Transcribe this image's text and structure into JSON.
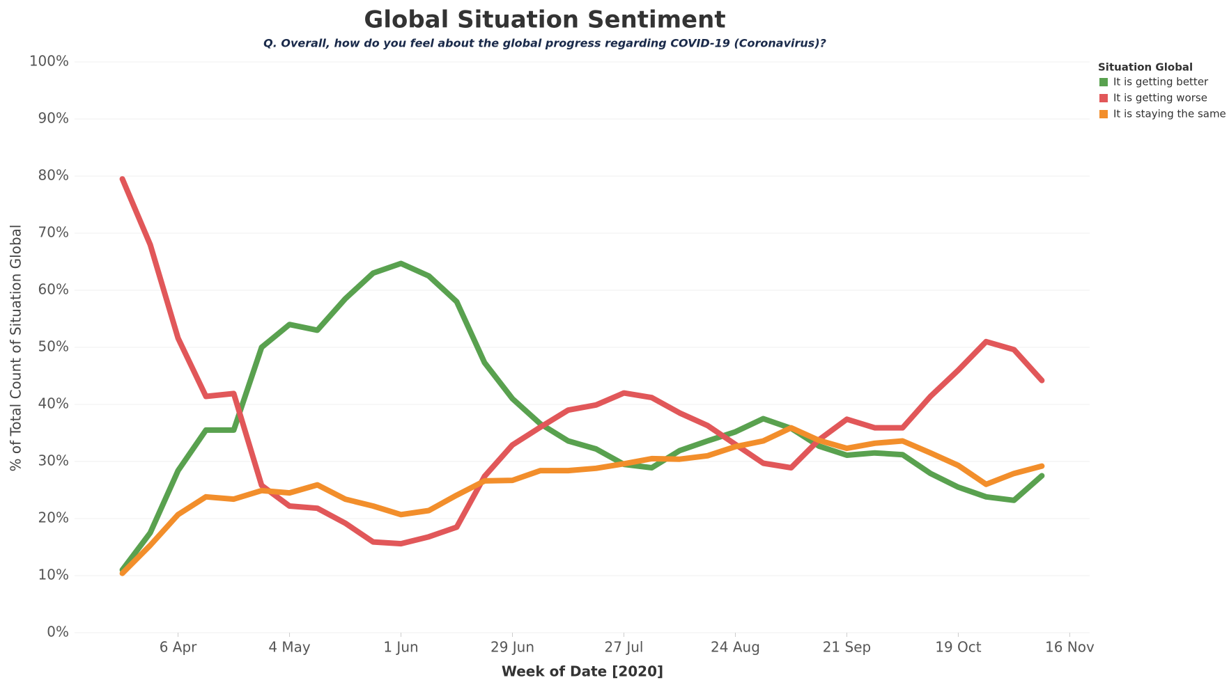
{
  "chart_data": {
    "type": "line",
    "title": "Global Situation Sentiment",
    "subtitle": "Q. Overall, how do you feel about the global progress regarding COVID-19 (Coronavirus)?",
    "x_label": "Week of Date [2020]",
    "y_label": "% of Total Count of Situation Global",
    "legend_title": "Situation Global",
    "legend": "right",
    "grid": true,
    "x": [
      "2020-03-23",
      "2020-03-30",
      "2020-04-06",
      "2020-04-13",
      "2020-04-20",
      "2020-04-27",
      "2020-05-04",
      "2020-05-11",
      "2020-05-18",
      "2020-05-25",
      "2020-06-01",
      "2020-06-08",
      "2020-06-15",
      "2020-06-22",
      "2020-06-29",
      "2020-07-06",
      "2020-07-13",
      "2020-07-20",
      "2020-07-27",
      "2020-08-03",
      "2020-08-10",
      "2020-08-17",
      "2020-08-24",
      "2020-08-31",
      "2020-09-07",
      "2020-09-14",
      "2020-09-21",
      "2020-09-28",
      "2020-10-05",
      "2020-10-12",
      "2020-10-19",
      "2020-10-26",
      "2020-11-02",
      "2020-11-09"
    ],
    "xlim": [
      "2020-03-11",
      "2020-11-21"
    ],
    "xticks": [
      {
        "value": "2020-04-06",
        "label": "6 Apr"
      },
      {
        "value": "2020-05-04",
        "label": "4 May"
      },
      {
        "value": "2020-06-01",
        "label": "1 Jun"
      },
      {
        "value": "2020-06-29",
        "label": "29 Jun"
      },
      {
        "value": "2020-07-27",
        "label": "27 Jul"
      },
      {
        "value": "2020-08-24",
        "label": "24 Aug"
      },
      {
        "value": "2020-09-21",
        "label": "21 Sep"
      },
      {
        "value": "2020-10-19",
        "label": "19 Oct"
      },
      {
        "value": "2020-11-16",
        "label": "16 Nov"
      }
    ],
    "ylim": [
      0,
      100
    ],
    "yticks": [
      {
        "value": 0,
        "label": "0%"
      },
      {
        "value": 10,
        "label": "10%"
      },
      {
        "value": 20,
        "label": "20%"
      },
      {
        "value": 30,
        "label": "30%"
      },
      {
        "value": 40,
        "label": "40%"
      },
      {
        "value": 50,
        "label": "50%"
      },
      {
        "value": 60,
        "label": "60%"
      },
      {
        "value": 70,
        "label": "70%"
      },
      {
        "value": 80,
        "label": "80%"
      },
      {
        "value": 90,
        "label": "90%"
      },
      {
        "value": 100,
        "label": "100%"
      }
    ],
    "series": [
      {
        "name": "It is getting better",
        "color": "#59a14f",
        "values": [
          11,
          17.5,
          28.4,
          35.5,
          35.5,
          50,
          54,
          53,
          58.5,
          63,
          64.7,
          62.5,
          58,
          47.3,
          41,
          36.6,
          33.6,
          32.2,
          29.5,
          28.9,
          31.9,
          33.6,
          35.2,
          37.5,
          35.8,
          32.7,
          31.1,
          31.5,
          31.2,
          27.9,
          25.5,
          23.8,
          23.2,
          27.5
        ]
      },
      {
        "name": "It is getting worse",
        "color": "#e15759",
        "values": [
          79.5,
          68,
          51.6,
          41.4,
          41.9,
          25.8,
          22.2,
          21.8,
          19.2,
          15.9,
          15.6,
          16.8,
          18.5,
          27.4,
          32.9,
          36,
          39,
          39.9,
          42,
          41.2,
          38.5,
          36.3,
          33,
          29.7,
          28.9,
          33.8,
          37.4,
          35.9,
          35.9,
          41.4,
          46,
          51,
          49.6,
          44.2
        ]
      },
      {
        "name": "It is staying the same",
        "color": "#f28e2b",
        "values": [
          10.4,
          15.3,
          20.7,
          23.8,
          23.4,
          24.9,
          24.5,
          25.9,
          23.4,
          22.2,
          20.7,
          21.4,
          24.1,
          26.6,
          26.7,
          28.4,
          28.4,
          28.8,
          29.6,
          30.5,
          30.4,
          31,
          32.6,
          33.6,
          35.9,
          33.7,
          32.3,
          33.2,
          33.6,
          31.5,
          29.3,
          26,
          27.9,
          29.2
        ]
      }
    ]
  }
}
